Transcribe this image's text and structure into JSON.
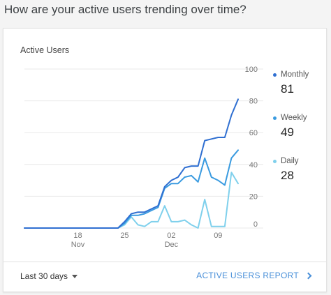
{
  "header": {
    "title": "How are your active users trending over time?"
  },
  "card": {
    "title": "Active Users"
  },
  "chart_data": {
    "type": "line",
    "title": "Active Users",
    "ylim": [
      0,
      100
    ],
    "yticks": [
      0,
      20,
      40,
      60,
      80,
      100
    ],
    "x_tick_labels": [
      {
        "day": 8,
        "label": "18",
        "sub": "Nov"
      },
      {
        "day": 15,
        "label": "25",
        "sub": ""
      },
      {
        "day": 22,
        "label": "02",
        "sub": "Dec"
      },
      {
        "day": 29,
        "label": "09",
        "sub": ""
      }
    ],
    "grid": true,
    "legend_position": "right",
    "series": [
      {
        "name": "Monthly",
        "color": "#2f6fd1",
        "latest": "81",
        "values": [
          0,
          0,
          0,
          0,
          0,
          0,
          0,
          0,
          0,
          0,
          0,
          0,
          0,
          0,
          0,
          4,
          9,
          10,
          10,
          12,
          14,
          26,
          30,
          32,
          38,
          39,
          39,
          55,
          56,
          57,
          57,
          71,
          81
        ]
      },
      {
        "name": "Weekly",
        "color": "#3a9be0",
        "latest": "49",
        "values": [
          0,
          0,
          0,
          0,
          0,
          0,
          0,
          0,
          0,
          0,
          0,
          0,
          0,
          0,
          0,
          3,
          8,
          8,
          9,
          11,
          13,
          25,
          28,
          28,
          32,
          33,
          29,
          44,
          32,
          30,
          27,
          44,
          49
        ]
      },
      {
        "name": "Daily",
        "color": "#7fd0ec",
        "latest": "28",
        "values": [
          0,
          0,
          0,
          0,
          0,
          0,
          0,
          0,
          0,
          0,
          0,
          0,
          0,
          0,
          0,
          2,
          7,
          2,
          1,
          4,
          4,
          14,
          4,
          4,
          5,
          2,
          0,
          18,
          1,
          1,
          1,
          35,
          28
        ]
      }
    ]
  },
  "footer": {
    "range_label": "Last 30 days",
    "report_label": "ACTIVE USERS REPORT"
  }
}
